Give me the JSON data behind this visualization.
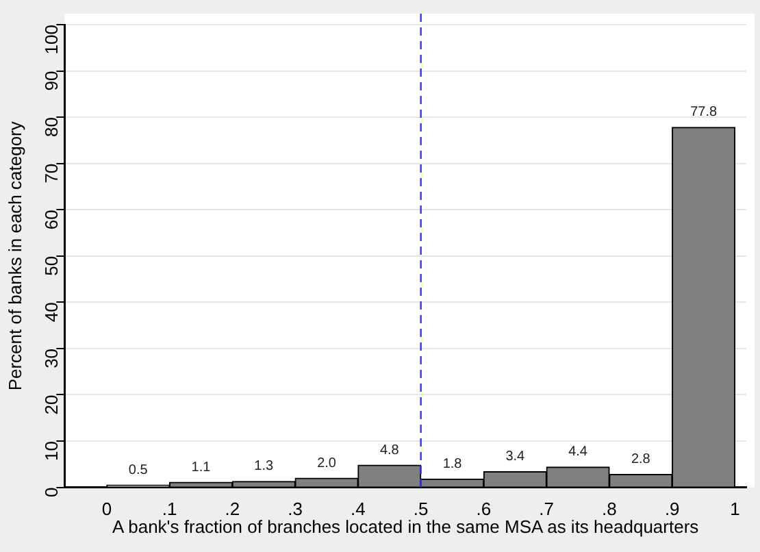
{
  "chart_data": {
    "type": "histogram",
    "xlabel": "A bank's fraction of branches located in the same MSA as its headquarters",
    "ylabel": "Percent of banks in each category",
    "bins": [
      0,
      0.1,
      0.2,
      0.3,
      0.4,
      0.5,
      0.6,
      0.7,
      0.8,
      0.9,
      1
    ],
    "values": [
      0.5,
      1.1,
      1.3,
      2.0,
      4.8,
      1.8,
      3.4,
      4.4,
      2.8,
      77.8
    ],
    "value_labels": [
      "0.5",
      "1.1",
      "1.3",
      "2.0",
      "4.8",
      "1.8",
      "3.4",
      "4.4",
      "2.8",
      "77.8"
    ],
    "color": "#808080",
    "xlim": [
      -0.067,
      1.018
    ],
    "xticks": [
      0,
      {
        "value": 0.1,
        "label": ".1"
      },
      {
        "value": 0.2,
        "label": ".2"
      },
      {
        "value": 0.3,
        "label": ".3"
      },
      {
        "value": 0.4,
        "label": ".4"
      },
      {
        "value": 0.5,
        "label": ".5"
      },
      {
        "value": 0.6,
        "label": ".6"
      },
      {
        "value": 0.7,
        "label": ".7"
      },
      {
        "value": 0.8,
        "label": ".8"
      },
      {
        "value": 0.9,
        "label": ".9"
      },
      1
    ],
    "ylim": [
      0,
      100
    ],
    "yticks": [
      0,
      10,
      20,
      30,
      40,
      50,
      60,
      70,
      80,
      90,
      100
    ],
    "grid": "y",
    "ref_lines": [
      {
        "axis": "x",
        "value": 0.5,
        "color": "#3333ff",
        "line_style": "dashed"
      }
    ]
  }
}
